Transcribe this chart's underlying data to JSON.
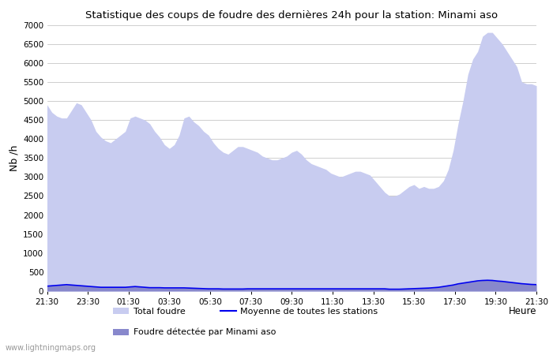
{
  "title": "Statistique des coups de foudre des dernières 24h pour la station: Minami aso",
  "ylabel": "Nb /h",
  "xlabel": "Heure",
  "watermark": "www.lightningmaps.org",
  "ylim": [
    0,
    7000
  ],
  "yticks": [
    0,
    500,
    1000,
    1500,
    2000,
    2500,
    3000,
    3500,
    4000,
    4500,
    5000,
    5500,
    6000,
    6500,
    7000
  ],
  "xtick_labels": [
    "21:30",
    "23:30",
    "01:30",
    "03:30",
    "05:30",
    "07:30",
    "09:30",
    "11:30",
    "13:30",
    "15:30",
    "17:30",
    "19:30",
    "21:30"
  ],
  "bg_color": "#ffffff",
  "fill_total_color": "#c8ccf0",
  "fill_local_color": "#8888cc",
  "line_mean_color": "#0000ee",
  "total_foudre": [
    4900,
    4700,
    4600,
    4550,
    4550,
    4750,
    4950,
    4900,
    4700,
    4500,
    4200,
    4050,
    3950,
    3900,
    4000,
    4100,
    4200,
    4550,
    4600,
    4550,
    4500,
    4400,
    4200,
    4050,
    3850,
    3750,
    3850,
    4100,
    4550,
    4600,
    4450,
    4350,
    4200,
    4100,
    3900,
    3750,
    3650,
    3600,
    3700,
    3800,
    3800,
    3750,
    3700,
    3650,
    3550,
    3500,
    3450,
    3450,
    3500,
    3550,
    3650,
    3700,
    3600,
    3450,
    3350,
    3300,
    3250,
    3200,
    3100,
    3050,
    3000,
    3050,
    3100,
    3150,
    3150,
    3100,
    3050,
    2900,
    2750,
    2600,
    2500,
    2500,
    2550,
    2650,
    2750,
    2800,
    2700,
    2750,
    2700,
    2700,
    2750,
    2900,
    3200,
    3700,
    4400,
    5000,
    5700,
    6100,
    6300,
    6700,
    6800,
    6800,
    6650,
    6500,
    6300,
    6100,
    5900,
    5500,
    5450,
    5450,
    5400
  ],
  "local_foudre": [
    130,
    140,
    150,
    160,
    170,
    160,
    150,
    140,
    130,
    120,
    110,
    100,
    100,
    100,
    100,
    100,
    100,
    110,
    120,
    110,
    100,
    90,
    90,
    90,
    85,
    85,
    85,
    85,
    85,
    80,
    75,
    70,
    65,
    60,
    60,
    60,
    55,
    55,
    55,
    55,
    55,
    60,
    60,
    60,
    60,
    60,
    60,
    60,
    60,
    60,
    60,
    60,
    60,
    60,
    60,
    60,
    60,
    60,
    60,
    60,
    60,
    60,
    60,
    60,
    60,
    60,
    60,
    60,
    60,
    60,
    50,
    50,
    50,
    55,
    60,
    65,
    70,
    75,
    80,
    90,
    100,
    120,
    140,
    160,
    190,
    210,
    230,
    250,
    270,
    280,
    285,
    280,
    265,
    255,
    240,
    225,
    210,
    195,
    185,
    175,
    170
  ],
  "mean_foudre": [
    130,
    140,
    150,
    160,
    170,
    160,
    150,
    140,
    130,
    120,
    110,
    100,
    100,
    100,
    100,
    100,
    100,
    110,
    120,
    110,
    100,
    90,
    90,
    90,
    85,
    85,
    85,
    85,
    85,
    80,
    75,
    70,
    65,
    60,
    60,
    60,
    55,
    55,
    55,
    55,
    55,
    60,
    60,
    60,
    60,
    60,
    60,
    60,
    60,
    60,
    60,
    60,
    60,
    60,
    60,
    60,
    60,
    60,
    60,
    60,
    60,
    60,
    60,
    60,
    60,
    60,
    60,
    60,
    60,
    60,
    50,
    50,
    50,
    55,
    60,
    65,
    70,
    75,
    80,
    90,
    100,
    120,
    140,
    160,
    190,
    210,
    230,
    250,
    270,
    280,
    285,
    280,
    265,
    255,
    240,
    225,
    210,
    195,
    185,
    175,
    170
  ],
  "n_points": 101
}
